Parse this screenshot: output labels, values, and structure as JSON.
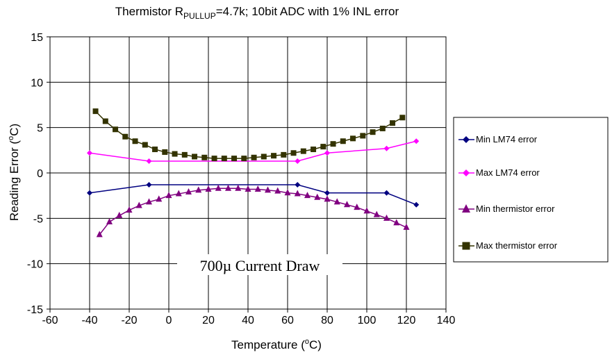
{
  "chart_data": {
    "type": "line",
    "title": "Thermistor R",
    "title_sub": "PULLUP",
    "title_rest": "=4.7k; 10bit ADC with 1% INL error",
    "xlabel_main": "Temperature (",
    "xlabel_sup": "o",
    "xlabel_end": "C)",
    "ylabel_main": "Reading Error (",
    "ylabel_sup": "o",
    "ylabel_end": "C)",
    "xlim": [
      -60,
      140
    ],
    "ylim": [
      -15,
      15
    ],
    "x_ticks": [
      "-60",
      "-40",
      "-20",
      "0",
      "20",
      "40",
      "60",
      "80",
      "100",
      "120",
      "140"
    ],
    "y_ticks": [
      "15",
      "10",
      "5",
      "0",
      "-5",
      "-10",
      "-15"
    ],
    "grid": true,
    "legend_position": "right",
    "annotation": "700µ Current Draw",
    "series": [
      {
        "name": "Min LM74 error",
        "color": "#000080",
        "marker": "diamond",
        "x": [
          -40,
          -10,
          65,
          80,
          110,
          125
        ],
        "y": [
          -2.2,
          -1.3,
          -1.3,
          -2.2,
          -2.2,
          -3.5
        ]
      },
      {
        "name": "Max LM74 error",
        "color": "#ff00ff",
        "marker": "diamond",
        "x": [
          -40,
          -10,
          65,
          80,
          110,
          125
        ],
        "y": [
          2.2,
          1.3,
          1.3,
          2.2,
          2.7,
          3.5
        ]
      },
      {
        "name": "Min thermistor error",
        "color": "#800080",
        "marker": "triangle",
        "x": [
          -35,
          -30,
          -25,
          -20,
          -15,
          -10,
          -5,
          0,
          5,
          10,
          15,
          20,
          25,
          30,
          35,
          40,
          45,
          50,
          55,
          60,
          65,
          70,
          75,
          80,
          85,
          90,
          95,
          100,
          105,
          110,
          115,
          120
        ],
        "y": [
          -6.8,
          -5.4,
          -4.7,
          -4.1,
          -3.6,
          -3.2,
          -2.9,
          -2.5,
          -2.3,
          -2.1,
          -1.9,
          -1.8,
          -1.7,
          -1.7,
          -1.7,
          -1.8,
          -1.8,
          -1.9,
          -2.0,
          -2.2,
          -2.3,
          -2.5,
          -2.7,
          -2.9,
          -3.2,
          -3.5,
          -3.8,
          -4.2,
          -4.6,
          -5.0,
          -5.5,
          -6.0
        ]
      },
      {
        "name": "Max thermistor error",
        "color": "#333300",
        "marker": "square",
        "x": [
          -37,
          -32,
          -27,
          -22,
          -17,
          -12,
          -7,
          -2,
          3,
          8,
          13,
          18,
          23,
          28,
          33,
          38,
          43,
          48,
          53,
          58,
          63,
          68,
          73,
          78,
          83,
          88,
          93,
          98,
          103,
          108,
          113,
          118
        ],
        "y": [
          6.8,
          5.7,
          4.8,
          4.0,
          3.5,
          3.1,
          2.6,
          2.3,
          2.1,
          2.0,
          1.8,
          1.7,
          1.6,
          1.6,
          1.6,
          1.6,
          1.7,
          1.8,
          1.9,
          2.0,
          2.2,
          2.4,
          2.6,
          2.9,
          3.2,
          3.5,
          3.8,
          4.1,
          4.5,
          4.9,
          5.5,
          6.1
        ]
      }
    ]
  }
}
